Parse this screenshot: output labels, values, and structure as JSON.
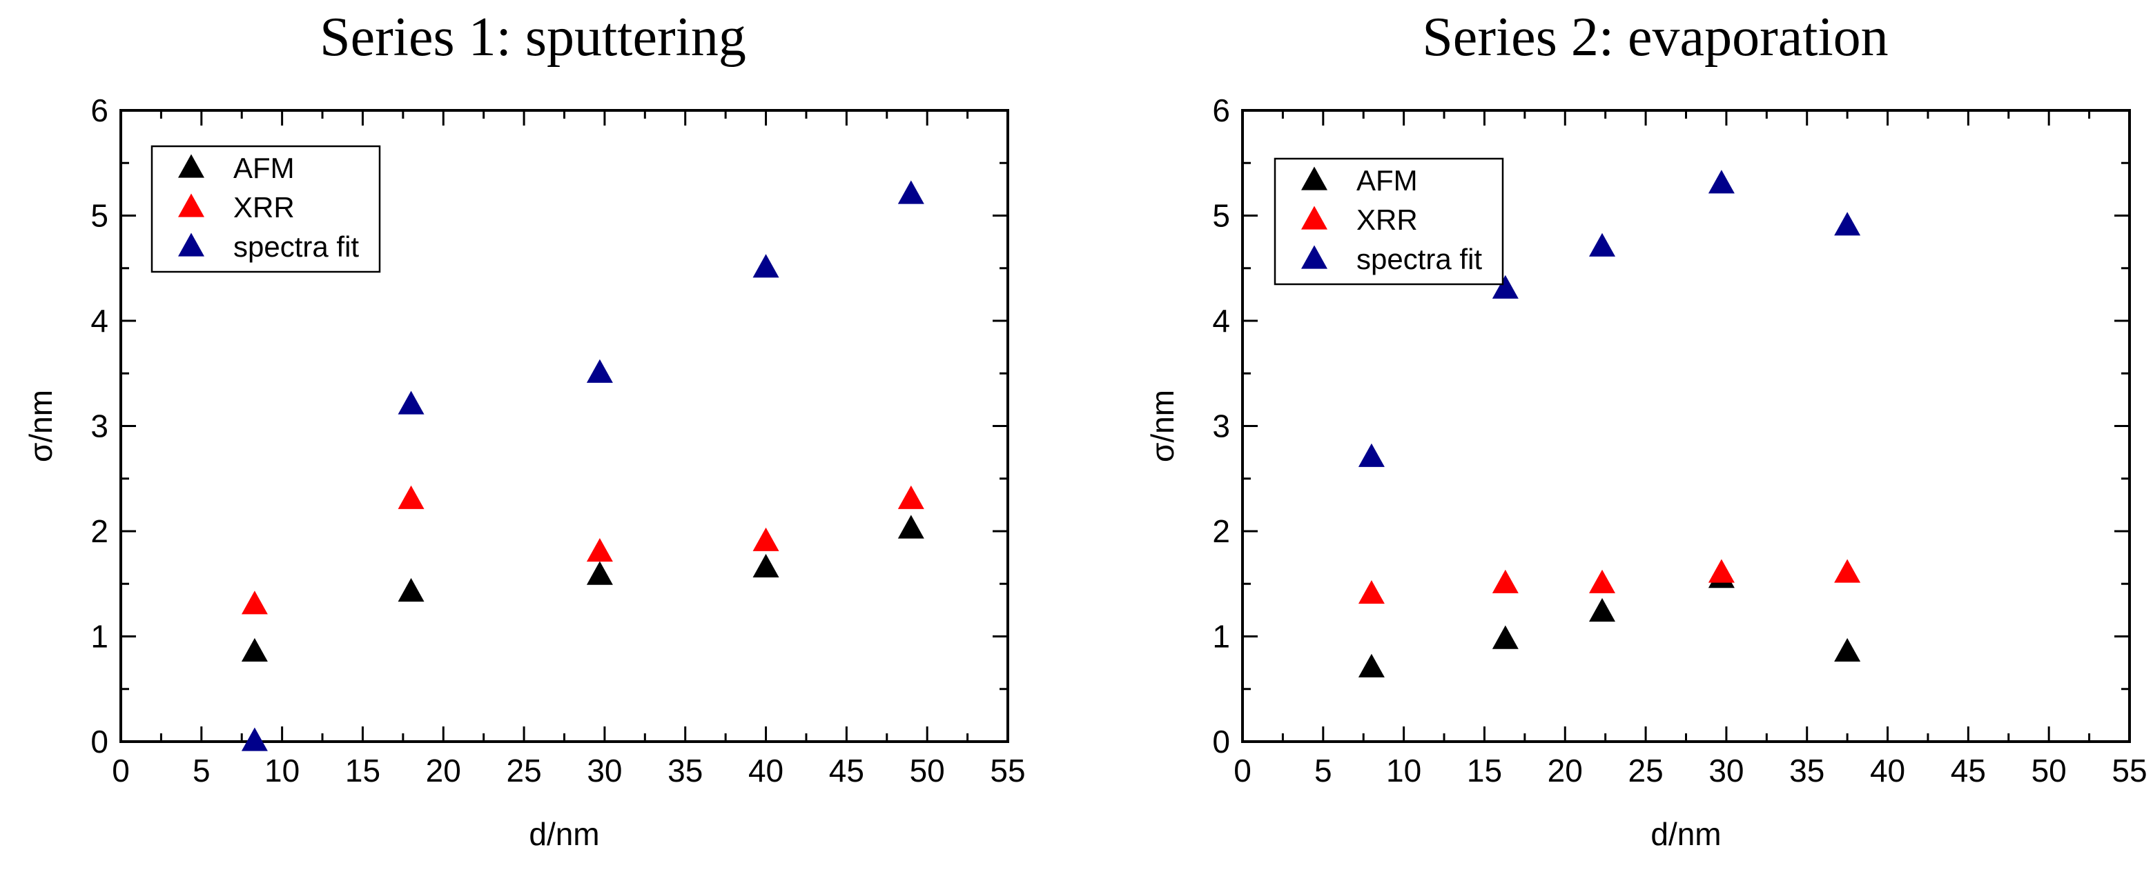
{
  "colors": {
    "AFM": "#000000",
    "XRR": "#ff0000",
    "spectra fit": "#00008b"
  },
  "chart_data": [
    {
      "type": "scatter",
      "title": "Series 1: sputtering",
      "xlabel": "d/nm",
      "ylabel": "σ/nm",
      "xlim": [
        0,
        55
      ],
      "ylim": [
        0,
        6
      ],
      "xticks": [
        0,
        5,
        10,
        15,
        20,
        25,
        30,
        35,
        40,
        45,
        50,
        55
      ],
      "yticks": [
        0,
        1,
        2,
        3,
        4,
        5,
        6
      ],
      "legend": [
        "AFM",
        "XRR",
        "spectra fit"
      ],
      "series": [
        {
          "name": "AFM",
          "x": [
            8.3,
            18,
            29.7,
            40,
            49
          ],
          "y": [
            0.85,
            1.42,
            1.58,
            1.65,
            2.02
          ]
        },
        {
          "name": "XRR",
          "x": [
            8.3,
            18,
            29.7,
            40,
            49
          ],
          "y": [
            1.3,
            2.3,
            1.8,
            1.9,
            2.3
          ]
        },
        {
          "name": "spectra fit",
          "x": [
            8.3,
            18,
            29.7,
            40,
            49
          ],
          "y": [
            0.0,
            3.2,
            3.5,
            4.5,
            5.2
          ]
        }
      ]
    },
    {
      "type": "scatter",
      "title": "Series 2: evaporation",
      "xlabel": "d/nm",
      "ylabel": "σ/nm",
      "xlim": [
        0,
        55
      ],
      "ylim": [
        0,
        6
      ],
      "xticks": [
        0,
        5,
        10,
        15,
        20,
        25,
        30,
        35,
        40,
        45,
        50,
        55
      ],
      "yticks": [
        0,
        1,
        2,
        3,
        4,
        5,
        6
      ],
      "legend": [
        "AFM",
        "XRR",
        "spectra fit"
      ],
      "series": [
        {
          "name": "AFM",
          "x": [
            8,
            16.3,
            22.3,
            29.7,
            37.5
          ],
          "y": [
            0.7,
            0.97,
            1.23,
            1.55,
            0.85
          ]
        },
        {
          "name": "XRR",
          "x": [
            8,
            16.3,
            22.3,
            29.7,
            37.5
          ],
          "y": [
            1.4,
            1.5,
            1.5,
            1.6,
            1.6
          ]
        },
        {
          "name": "spectra fit",
          "x": [
            8,
            16.3,
            22.3,
            29.7,
            37.5
          ],
          "y": [
            2.7,
            4.3,
            4.7,
            5.3,
            4.9
          ]
        }
      ]
    }
  ]
}
